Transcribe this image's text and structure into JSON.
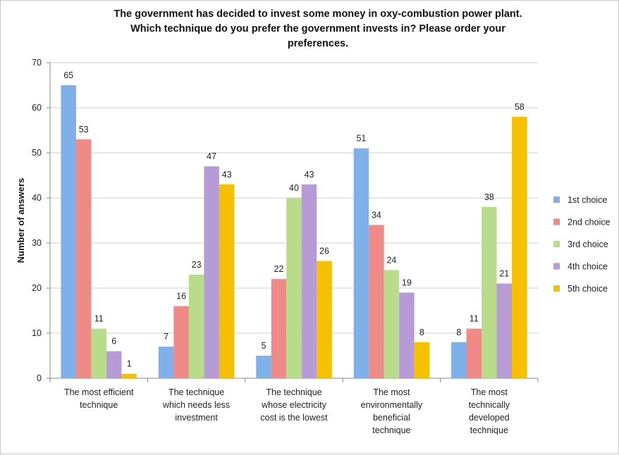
{
  "chart_data": {
    "type": "bar",
    "title": [
      "The government has decided to invest some money in oxy-combustion power plant.",
      "Which technique do you prefer the government invests in? Please order your",
      "preferences."
    ],
    "xlabel": "",
    "ylabel": "Number of answers",
    "ylim": [
      0,
      70
    ],
    "yticks": [
      0,
      10,
      20,
      30,
      40,
      50,
      60,
      70
    ],
    "grid": true,
    "legend_position": "right",
    "categories": [
      [
        "The most efficient",
        "technique"
      ],
      [
        "The technique",
        "which needs less",
        "investment"
      ],
      [
        "The technique",
        "whose electricity",
        "cost is the lowest"
      ],
      [
        "The most",
        "environmentally",
        "beneficial",
        "technique"
      ],
      [
        "The most",
        "technically",
        "developed",
        "technique"
      ]
    ],
    "series": [
      {
        "name": "1st choice",
        "color": "#7fb0ea",
        "values": [
          65,
          7,
          5,
          51,
          8
        ]
      },
      {
        "name": "2nd choice",
        "color": "#ee8a87",
        "values": [
          53,
          16,
          22,
          34,
          11
        ]
      },
      {
        "name": "3rd choice",
        "color": "#b9dc8a",
        "values": [
          11,
          23,
          40,
          24,
          38
        ]
      },
      {
        "name": "4th choice",
        "color": "#b79bd6",
        "values": [
          6,
          47,
          43,
          19,
          21
        ]
      },
      {
        "name": "5th choice",
        "color": "#f5c000",
        "values": [
          1,
          43,
          26,
          8,
          58
        ]
      }
    ]
  }
}
